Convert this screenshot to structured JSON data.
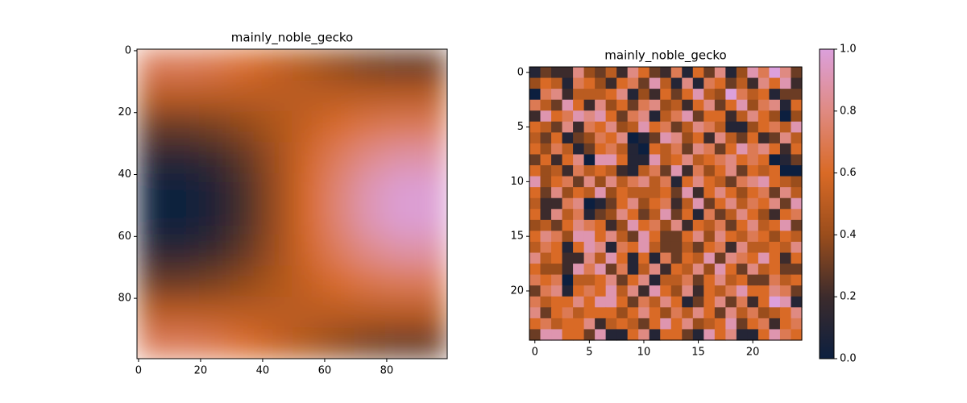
{
  "chart_data": [
    {
      "type": "heatmap",
      "title": "mainly_noble_gecko",
      "colormap": [
        "#0c1f3f",
        "#3c2b2c",
        "#9a4d1c",
        "#d96a26",
        "#df8a82",
        "#dca0dc"
      ],
      "smooth": true,
      "xlim": [
        -0.5,
        99.5
      ],
      "ylim": [
        99.5,
        -0.5
      ],
      "xticks": [
        0,
        20,
        40,
        60,
        80
      ],
      "yticks": [
        0,
        20,
        40,
        60,
        80
      ],
      "values": [
        [
          0.71,
          0.71,
          0.68,
          0.62,
          0.54,
          0.46,
          0.38,
          0.32,
          0.29,
          0.29
        ],
        [
          0.5,
          0.5,
          0.5,
          0.5,
          0.5,
          0.5,
          0.5,
          0.5,
          0.5,
          0.5
        ],
        [
          0.29,
          0.29,
          0.32,
          0.38,
          0.46,
          0.54,
          0.62,
          0.68,
          0.71,
          0.71
        ],
        [
          0.12,
          0.12,
          0.18,
          0.28,
          0.42,
          0.58,
          0.72,
          0.82,
          0.88,
          0.88
        ],
        [
          0.02,
          0.02,
          0.09,
          0.23,
          0.4,
          0.6,
          0.77,
          0.91,
          0.98,
          0.98
        ],
        [
          0.02,
          0.02,
          0.09,
          0.23,
          0.4,
          0.6,
          0.77,
          0.91,
          0.98,
          0.98
        ],
        [
          0.12,
          0.12,
          0.18,
          0.28,
          0.42,
          0.58,
          0.72,
          0.82,
          0.88,
          0.88
        ],
        [
          0.29,
          0.29,
          0.32,
          0.38,
          0.46,
          0.54,
          0.62,
          0.68,
          0.71,
          0.71
        ],
        [
          0.5,
          0.5,
          0.5,
          0.5,
          0.5,
          0.5,
          0.5,
          0.5,
          0.5,
          0.5
        ],
        [
          0.71,
          0.71,
          0.68,
          0.62,
          0.54,
          0.46,
          0.38,
          0.32,
          0.29,
          0.29
        ]
      ]
    },
    {
      "type": "heatmap",
      "title": "mainly_noble_gecko",
      "colormap": [
        "#0c1f3f",
        "#3c2b2c",
        "#9a4d1c",
        "#d96a26",
        "#df8a82",
        "#dca0dc"
      ],
      "smooth": false,
      "xlim": [
        -0.5,
        24.5
      ],
      "ylim": [
        24.5,
        -0.5
      ],
      "xticks": [
        0,
        5,
        10,
        15,
        20
      ],
      "yticks": [
        0,
        5,
        10,
        15,
        20
      ],
      "colorbar": {
        "ylim": [
          0,
          1
        ],
        "yticks": [
          {
            "value": 0,
            "label": "0.0"
          },
          {
            "value": 0.2,
            "label": "0.2"
          },
          {
            "value": 0.4,
            "label": "0.4"
          },
          {
            "value": 0.6,
            "label": "0.6"
          },
          {
            "value": 0.8,
            "label": "0.8"
          },
          {
            "value": 1,
            "label": "1.0"
          }
        ]
      },
      "values": [
        [
          0.1,
          0.3,
          0.2,
          0.2,
          0.8,
          0.4,
          0.3,
          0.5,
          0.2,
          0.8,
          0.6,
          0.3,
          0.2,
          0.7,
          0.1,
          0.6,
          0.3,
          0.8,
          0.1,
          0.4,
          0.9,
          0.7,
          1.0,
          0.8,
          0.3
        ],
        [
          0.4,
          0.6,
          0.5,
          0.1,
          0.7,
          0.6,
          0.4,
          0.2,
          0.6,
          0.7,
          0.3,
          0.9,
          0.5,
          0.1,
          0.8,
          0.1,
          0.7,
          0.6,
          0.3,
          0.5,
          0.2,
          0.8,
          0.6,
          0.9,
          0.2
        ],
        [
          0.0,
          0.7,
          0.8,
          0.2,
          0.5,
          0.5,
          0.5,
          0.6,
          0.8,
          0.1,
          0.4,
          0.2,
          0.6,
          0.3,
          0.6,
          0.9,
          0.5,
          0.4,
          1.0,
          0.7,
          0.5,
          0.6,
          0.1,
          0.3,
          0.3
        ],
        [
          0.7,
          0.5,
          0.3,
          0.9,
          0.6,
          0.2,
          0.8,
          0.4,
          0.6,
          0.3,
          0.7,
          0.8,
          0.4,
          0.5,
          0.2,
          0.6,
          0.8,
          0.3,
          0.6,
          0.9,
          0.4,
          0.7,
          0.8,
          0.1,
          0.6
        ],
        [
          0.2,
          0.9,
          0.6,
          0.7,
          0.9,
          0.8,
          0.9,
          0.6,
          0.3,
          0.7,
          0.8,
          0.1,
          0.5,
          0.7,
          0.9,
          0.3,
          0.6,
          0.6,
          0.2,
          0.5,
          0.8,
          0.6,
          0.4,
          0.0,
          0.4
        ],
        [
          0.6,
          0.5,
          0.3,
          0.8,
          0.2,
          0.7,
          0.6,
          0.8,
          0.4,
          0.5,
          0.9,
          0.6,
          0.7,
          0.3,
          0.5,
          0.8,
          0.7,
          0.5,
          0.1,
          0.1,
          0.4,
          0.6,
          0.7,
          0.5,
          0.9
        ],
        [
          0.5,
          0.3,
          0.6,
          0.1,
          0.3,
          0.4,
          0.7,
          0.6,
          0.8,
          0.0,
          0.1,
          0.3,
          0.9,
          0.8,
          0.4,
          0.6,
          0.2,
          0.8,
          0.5,
          0.3,
          0.6,
          0.2,
          0.3,
          0.8,
          0.5
        ],
        [
          0.6,
          0.4,
          0.7,
          0.5,
          0.1,
          0.3,
          0.6,
          0.7,
          0.5,
          0.1,
          0.0,
          0.6,
          0.5,
          0.7,
          0.3,
          0.8,
          0.7,
          0.3,
          0.6,
          0.9,
          0.7,
          0.8,
          0.6,
          0.2,
          0.6
        ],
        [
          0.3,
          0.6,
          0.2,
          0.6,
          0.8,
          0.0,
          0.9,
          0.9,
          0.6,
          0.1,
          0.1,
          0.9,
          0.5,
          0.6,
          0.8,
          0.5,
          0.6,
          0.7,
          0.8,
          0.6,
          0.7,
          0.6,
          0.0,
          0.1,
          0.3
        ],
        [
          0.6,
          0.4,
          0.5,
          0.2,
          0.7,
          0.5,
          0.6,
          0.5,
          0.2,
          0.1,
          0.5,
          0.7,
          0.3,
          0.9,
          0.2,
          0.7,
          0.4,
          0.6,
          0.8,
          0.3,
          0.6,
          0.5,
          0.6,
          0.0,
          0.0
        ],
        [
          0.9,
          0.4,
          0.6,
          0.7,
          0.3,
          0.8,
          0.4,
          0.8,
          0.5,
          0.7,
          0.8,
          0.5,
          0.7,
          0.1,
          0.6,
          0.8,
          0.6,
          0.5,
          0.3,
          0.7,
          0.8,
          0.9,
          0.6,
          0.5,
          0.4
        ],
        [
          0.6,
          0.3,
          0.8,
          0.4,
          0.6,
          0.5,
          0.9,
          0.4,
          0.6,
          0.5,
          0.5,
          0.5,
          0.6,
          0.3,
          0.9,
          0.2,
          0.6,
          0.8,
          0.6,
          0.4,
          0.6,
          0.7,
          0.3,
          0.8,
          0.5
        ],
        [
          0.5,
          0.2,
          0.2,
          0.7,
          0.8,
          0.0,
          0.1,
          0.3,
          0.6,
          0.8,
          0.4,
          0.6,
          0.7,
          0.2,
          0.5,
          0.9,
          0.3,
          0.6,
          0.8,
          0.5,
          0.7,
          0.6,
          0.8,
          0.3,
          0.9
        ],
        [
          0.6,
          0.2,
          0.8,
          0.5,
          0.7,
          0.1,
          0.3,
          0.4,
          0.8,
          0.6,
          0.3,
          0.5,
          0.9,
          0.3,
          0.6,
          0.1,
          0.7,
          0.3,
          0.5,
          0.8,
          0.6,
          0.4,
          0.2,
          0.6,
          0.7
        ],
        [
          0.4,
          0.5,
          0.3,
          0.6,
          0.8,
          0.7,
          0.6,
          0.2,
          0.4,
          0.9,
          0.6,
          0.7,
          0.4,
          0.8,
          0.2,
          0.6,
          0.5,
          0.7,
          0.3,
          0.6,
          0.8,
          0.5,
          0.6,
          0.9,
          0.3
        ],
        [
          0.6,
          0.8,
          0.7,
          0.4,
          0.9,
          0.9,
          0.6,
          0.8,
          0.5,
          0.3,
          0.9,
          0.6,
          0.3,
          0.3,
          0.6,
          0.8,
          0.4,
          0.8,
          0.6,
          0.5,
          0.7,
          0.6,
          0.4,
          0.6,
          0.5
        ],
        [
          0.5,
          0.7,
          0.6,
          0.1,
          0.6,
          0.9,
          0.8,
          0.1,
          0.7,
          0.6,
          0.9,
          0.5,
          0.3,
          0.3,
          0.5,
          0.3,
          0.6,
          0.7,
          0.2,
          0.8,
          0.5,
          0.5,
          0.6,
          0.5,
          0.8
        ],
        [
          0.8,
          0.5,
          0.6,
          0.2,
          0.2,
          0.8,
          0.5,
          0.9,
          0.6,
          0.1,
          0.6,
          0.1,
          0.7,
          0.3,
          0.6,
          0.5,
          0.9,
          0.3,
          0.8,
          0.7,
          0.6,
          0.9,
          0.6,
          0.2,
          0.6
        ],
        [
          0.6,
          0.4,
          0.4,
          0.2,
          0.9,
          0.7,
          0.9,
          0.3,
          0.7,
          0.1,
          0.5,
          0.8,
          0.2,
          0.6,
          0.5,
          0.8,
          0.4,
          0.9,
          0.6,
          0.3,
          0.8,
          0.5,
          0.6,
          0.3,
          0.3
        ],
        [
          0.7,
          0.6,
          0.7,
          0.0,
          0.5,
          0.5,
          0.6,
          0.8,
          0.3,
          0.6,
          0.8,
          0.1,
          0.5,
          0.5,
          0.7,
          0.3,
          0.6,
          0.8,
          0.5,
          0.6,
          0.3,
          0.3,
          0.7,
          0.5,
          0.6
        ],
        [
          0.3,
          0.7,
          0.8,
          0.1,
          0.6,
          0.7,
          0.6,
          0.9,
          0.5,
          0.8,
          0.2,
          0.9,
          0.6,
          0.4,
          0.8,
          0.2,
          0.6,
          0.5,
          0.7,
          0.9,
          0.6,
          0.6,
          0.8,
          0.7,
          0.3
        ],
        [
          0.7,
          0.5,
          0.6,
          0.6,
          0.8,
          0.6,
          0.9,
          0.9,
          0.6,
          0.3,
          0.7,
          0.5,
          0.8,
          0.6,
          0.1,
          0.3,
          0.6,
          0.8,
          0.3,
          0.7,
          0.2,
          0.6,
          1.0,
          0.9,
          0.1
        ],
        [
          0.8,
          0.3,
          0.6,
          0.7,
          0.5,
          0.6,
          0.6,
          0.6,
          0.4,
          0.6,
          0.8,
          0.6,
          0.4,
          0.7,
          0.5,
          0.8,
          0.6,
          0.3,
          0.8,
          0.5,
          0.7,
          0.4,
          0.5,
          0.6,
          0.8
        ],
        [
          0.6,
          0.7,
          0.5,
          0.6,
          0.6,
          0.8,
          0.2,
          0.5,
          0.6,
          0.5,
          0.3,
          0.6,
          0.9,
          0.6,
          0.8,
          0.4,
          0.5,
          0.6,
          0.9,
          0.3,
          0.6,
          0.7,
          0.2,
          0.6,
          0.7
        ],
        [
          0.3,
          0.9,
          0.9,
          0.6,
          0.6,
          0.3,
          0.9,
          0.1,
          0.1,
          0.6,
          0.8,
          0.1,
          0.6,
          0.6,
          0.3,
          0.1,
          0.9,
          0.6,
          0.8,
          0.1,
          0.1,
          0.6,
          0.9,
          0.7,
          0.6
        ]
      ]
    }
  ]
}
